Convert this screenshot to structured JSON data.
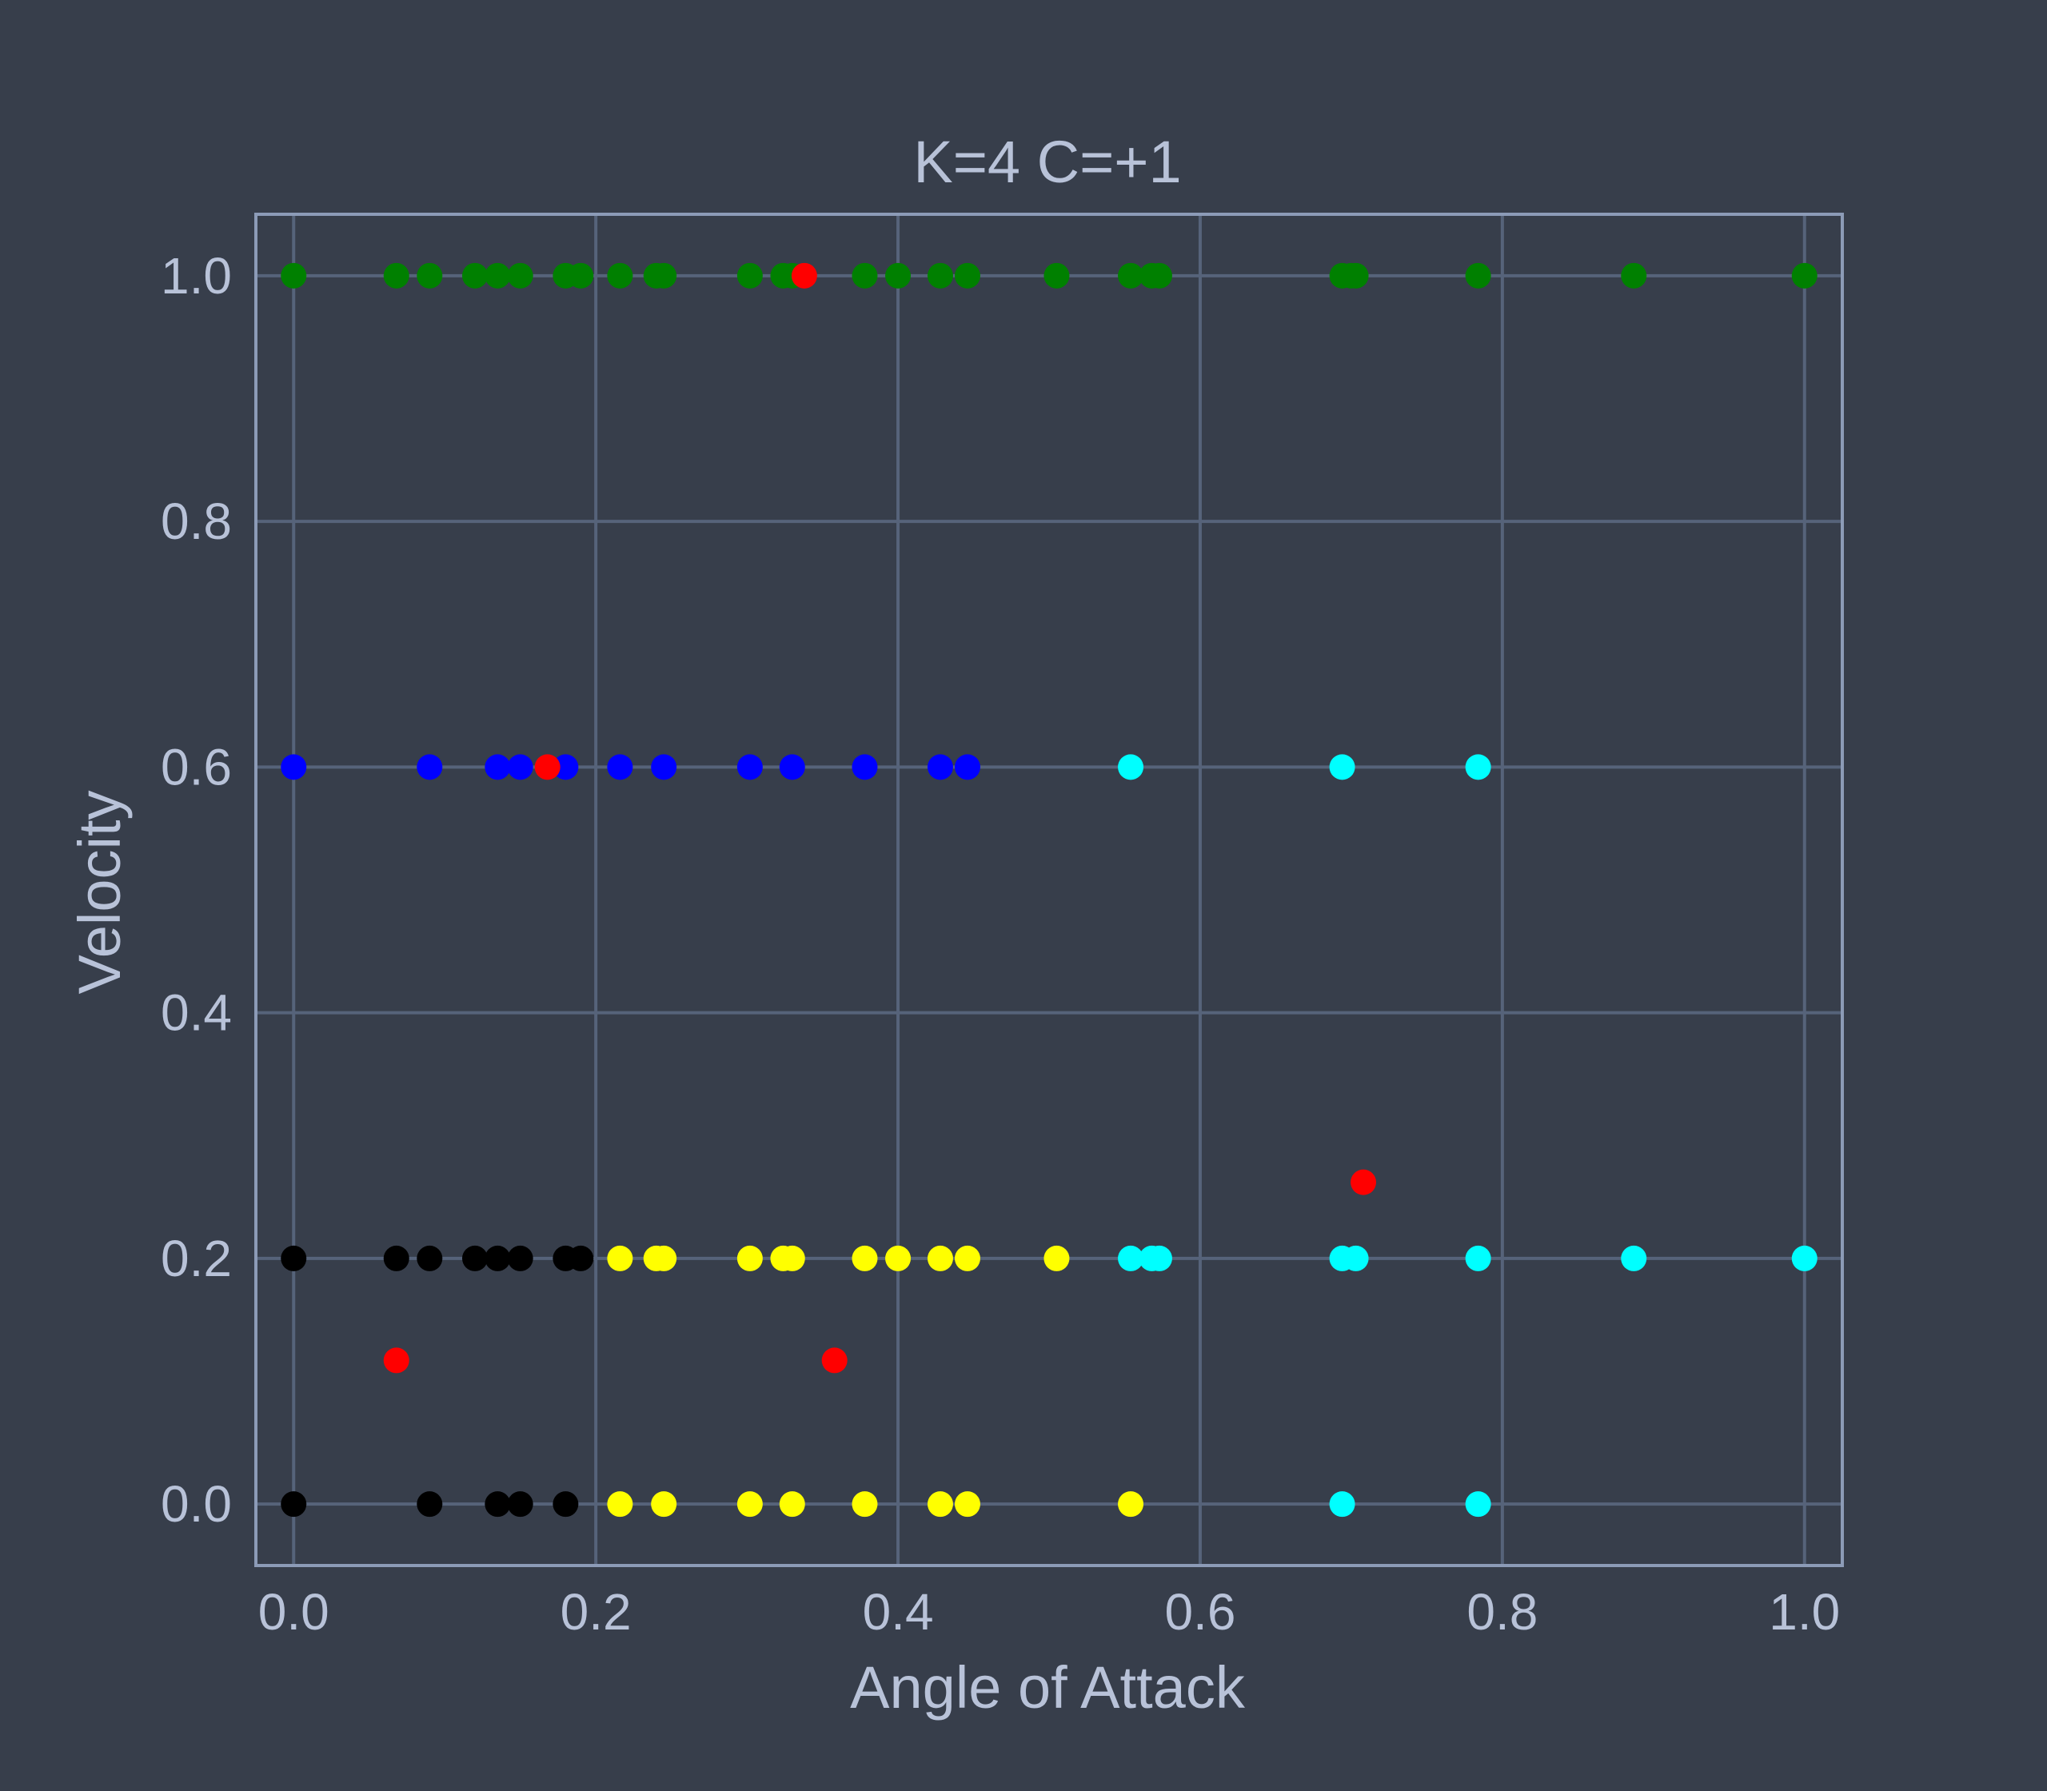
{
  "chart_data": {
    "type": "scatter",
    "title": "K=4 C=+1",
    "xlabel": "Angle of Attack",
    "ylabel": "Velocity",
    "xlim": [
      -0.025,
      1.025
    ],
    "ylim": [
      -0.05,
      1.05
    ],
    "xticks": [
      "0.0",
      "0.2",
      "0.4",
      "0.6",
      "0.8",
      "1.0"
    ],
    "yticks": [
      "0.0",
      "0.2",
      "0.4",
      "0.6",
      "0.8",
      "1.0"
    ],
    "grid": true,
    "legend": false,
    "colors": {
      "background": "#373e4b",
      "grid": "#56637a",
      "frame": "#8c9bb7",
      "text": "#b8c2d8"
    },
    "series": [
      {
        "color": "#008000",
        "points": [
          [
            0.0,
            1.0
          ],
          [
            0.068,
            1.0
          ],
          [
            0.09,
            1.0
          ],
          [
            0.12,
            1.0
          ],
          [
            0.135,
            1.0
          ],
          [
            0.15,
            1.0
          ],
          [
            0.18,
            1.0
          ],
          [
            0.19,
            1.0
          ],
          [
            0.216,
            1.0
          ],
          [
            0.24,
            1.0
          ],
          [
            0.245,
            1.0
          ],
          [
            0.302,
            1.0
          ],
          [
            0.324,
            1.0
          ],
          [
            0.33,
            1.0
          ],
          [
            0.378,
            1.0
          ],
          [
            0.4,
            1.0
          ],
          [
            0.428,
            1.0
          ],
          [
            0.446,
            1.0
          ],
          [
            0.505,
            1.0
          ],
          [
            0.554,
            1.0
          ],
          [
            0.568,
            1.0
          ],
          [
            0.573,
            1.0
          ],
          [
            0.694,
            1.0
          ],
          [
            0.7,
            1.0
          ],
          [
            0.703,
            1.0
          ],
          [
            0.784,
            1.0
          ],
          [
            0.887,
            1.0
          ],
          [
            1.0,
            1.0
          ]
        ]
      },
      {
        "color": "#0000ff",
        "points": [
          [
            0.0,
            0.6
          ],
          [
            0.09,
            0.6
          ],
          [
            0.135,
            0.6
          ],
          [
            0.15,
            0.6
          ],
          [
            0.18,
            0.6
          ],
          [
            0.216,
            0.6
          ],
          [
            0.245,
            0.6
          ],
          [
            0.302,
            0.6
          ],
          [
            0.33,
            0.6
          ],
          [
            0.378,
            0.6
          ],
          [
            0.428,
            0.6
          ],
          [
            0.446,
            0.6
          ]
        ]
      },
      {
        "color": "#00ffff",
        "points": [
          [
            0.554,
            0.6
          ],
          [
            0.694,
            0.6
          ],
          [
            0.784,
            0.6
          ],
          [
            0.554,
            0.2
          ],
          [
            0.568,
            0.2
          ],
          [
            0.573,
            0.2
          ],
          [
            0.694,
            0.2
          ],
          [
            0.703,
            0.2
          ],
          [
            0.784,
            0.2
          ],
          [
            0.887,
            0.2
          ],
          [
            1.0,
            0.2
          ],
          [
            0.694,
            0.0
          ],
          [
            0.784,
            0.0
          ]
        ]
      },
      {
        "color": "#000000",
        "points": [
          [
            0.0,
            0.2
          ],
          [
            0.068,
            0.2
          ],
          [
            0.09,
            0.2
          ],
          [
            0.12,
            0.2
          ],
          [
            0.135,
            0.2
          ],
          [
            0.15,
            0.2
          ],
          [
            0.18,
            0.2
          ],
          [
            0.19,
            0.2
          ],
          [
            0.0,
            0.0
          ],
          [
            0.09,
            0.0
          ],
          [
            0.135,
            0.0
          ],
          [
            0.15,
            0.0
          ],
          [
            0.18,
            0.0
          ]
        ]
      },
      {
        "color": "#ffff00",
        "points": [
          [
            0.216,
            0.2
          ],
          [
            0.24,
            0.2
          ],
          [
            0.245,
            0.2
          ],
          [
            0.302,
            0.2
          ],
          [
            0.324,
            0.2
          ],
          [
            0.33,
            0.2
          ],
          [
            0.378,
            0.2
          ],
          [
            0.4,
            0.2
          ],
          [
            0.428,
            0.2
          ],
          [
            0.446,
            0.2
          ],
          [
            0.505,
            0.2
          ],
          [
            0.216,
            0.0
          ],
          [
            0.245,
            0.0
          ],
          [
            0.302,
            0.0
          ],
          [
            0.33,
            0.0
          ],
          [
            0.378,
            0.0
          ],
          [
            0.428,
            0.0
          ],
          [
            0.446,
            0.0
          ],
          [
            0.554,
            0.0
          ]
        ]
      },
      {
        "color": "#ff0000",
        "points": [
          [
            0.338,
            1.0
          ],
          [
            0.168,
            0.6
          ],
          [
            0.708,
            0.262
          ],
          [
            0.068,
            0.117
          ],
          [
            0.358,
            0.117
          ]
        ]
      }
    ]
  }
}
